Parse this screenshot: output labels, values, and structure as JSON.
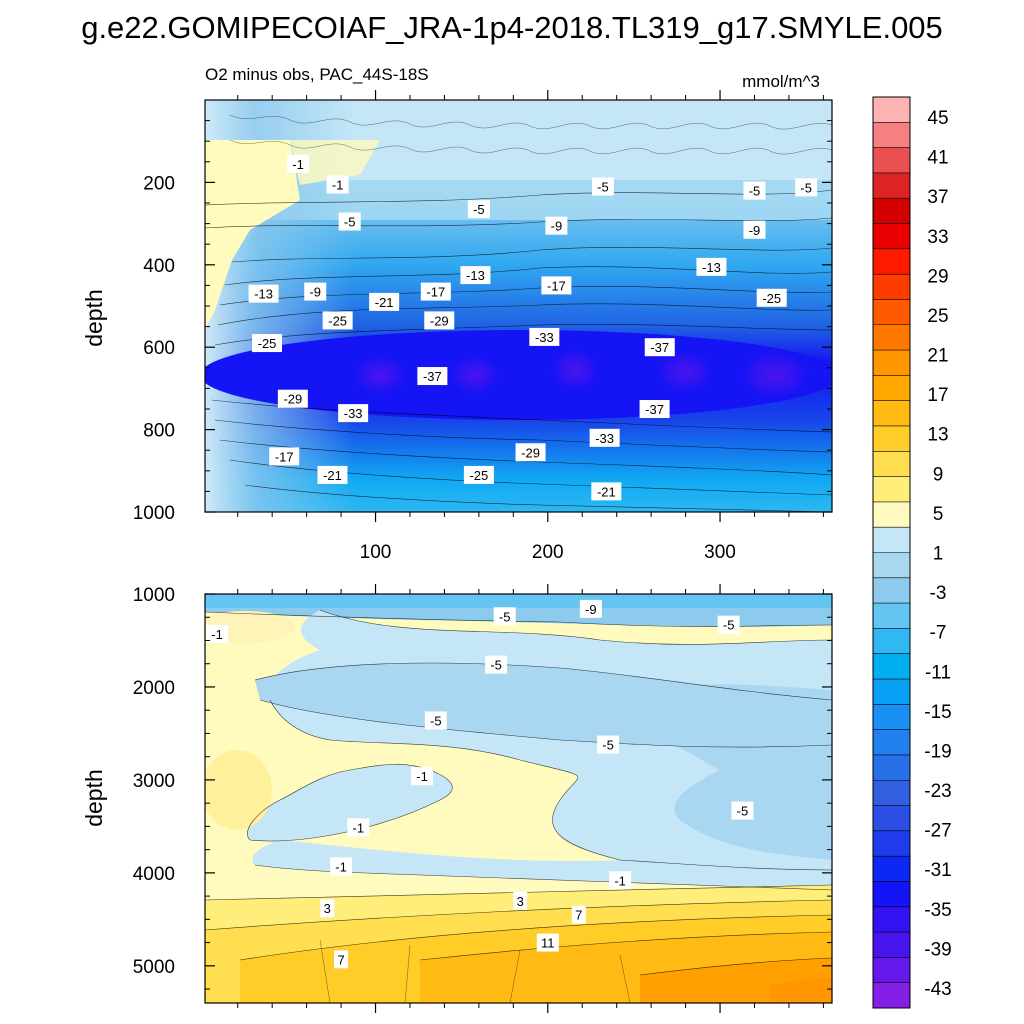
{
  "figure": {
    "title": "g.e22.GOMIPECOIAF_JRA-1p4-2018.TL319_g17.SMYLE.005"
  },
  "chart_data": [
    {
      "type": "contour",
      "panel": "upper",
      "left_title": "O2 minus obs, PAC_44S-18S",
      "right_title": "mmol/m^3",
      "ylabel": "depth",
      "xlabel": "",
      "xlim": [
        1,
        365
      ],
      "ylim": [
        1000,
        0
      ],
      "x_ticks": [
        100,
        200,
        300
      ],
      "y_ticks": [
        200,
        400,
        600,
        800,
        1000
      ],
      "core_min_value": -43,
      "core_depth": 660,
      "contour_labels": [
        {
          "text": "-1",
          "x": 55,
          "y": 155
        },
        {
          "text": "-1",
          "x": 78,
          "y": 205
        },
        {
          "text": "-5",
          "x": 85,
          "y": 295
        },
        {
          "text": "-5",
          "x": 160,
          "y": 265
        },
        {
          "text": "-5",
          "x": 232,
          "y": 210
        },
        {
          "text": "-5",
          "x": 320,
          "y": 220
        },
        {
          "text": "-5",
          "x": 350,
          "y": 212
        },
        {
          "text": "-9",
          "x": 65,
          "y": 465
        },
        {
          "text": "-9",
          "x": 205,
          "y": 305
        },
        {
          "text": "-9",
          "x": 320,
          "y": 315
        },
        {
          "text": "-13",
          "x": 35,
          "y": 470
        },
        {
          "text": "-13",
          "x": 158,
          "y": 425
        },
        {
          "text": "-13",
          "x": 295,
          "y": 405
        },
        {
          "text": "-17",
          "x": 135,
          "y": 465
        },
        {
          "text": "-17",
          "x": 205,
          "y": 450
        },
        {
          "text": "-21",
          "x": 105,
          "y": 490
        },
        {
          "text": "-25",
          "x": 78,
          "y": 535
        },
        {
          "text": "-25",
          "x": 37,
          "y": 590
        },
        {
          "text": "-25",
          "x": 330,
          "y": 480
        },
        {
          "text": "-29",
          "x": 137,
          "y": 535
        },
        {
          "text": "-29",
          "x": 52,
          "y": 725
        },
        {
          "text": "-29",
          "x": 190,
          "y": 855
        },
        {
          "text": "-33",
          "x": 198,
          "y": 575
        },
        {
          "text": "-33",
          "x": 87,
          "y": 760
        },
        {
          "text": "-33",
          "x": 233,
          "y": 820
        },
        {
          "text": "-37",
          "x": 265,
          "y": 600
        },
        {
          "text": "-37",
          "x": 133,
          "y": 670
        },
        {
          "text": "-37",
          "x": 262,
          "y": 750
        },
        {
          "text": "-17",
          "x": 47,
          "y": 865
        },
        {
          "text": "-21",
          "x": 75,
          "y": 910
        },
        {
          "text": "-21",
          "x": 234,
          "y": 950
        },
        {
          "text": "-25",
          "x": 160,
          "y": 910
        }
      ]
    },
    {
      "type": "contour",
      "panel": "lower",
      "ylabel": "depth",
      "xlabel": "",
      "xlim": [
        1,
        365
      ],
      "ylim": [
        5400,
        1000
      ],
      "x_ticks": [
        100,
        200,
        300
      ],
      "y_ticks": [
        1000,
        2000,
        3000,
        4000,
        5000
      ],
      "contour_labels": [
        {
          "text": "-1",
          "x": 8,
          "y": 1430
        },
        {
          "text": "-5",
          "x": 175,
          "y": 1240
        },
        {
          "text": "-9",
          "x": 225,
          "y": 1160
        },
        {
          "text": "-5",
          "x": 305,
          "y": 1330
        },
        {
          "text": "-5",
          "x": 170,
          "y": 1760
        },
        {
          "text": "-5",
          "x": 135,
          "y": 2360
        },
        {
          "text": "-5",
          "x": 235,
          "y": 2620
        },
        {
          "text": "-1",
          "x": 127,
          "y": 2960
        },
        {
          "text": "-5",
          "x": 313,
          "y": 3330
        },
        {
          "text": "-1",
          "x": 90,
          "y": 3510
        },
        {
          "text": "-1",
          "x": 80,
          "y": 3930
        },
        {
          "text": "-1",
          "x": 242,
          "y": 4080
        },
        {
          "text": "3",
          "x": 72,
          "y": 4380
        },
        {
          "text": "3",
          "x": 184,
          "y": 4300
        },
        {
          "text": "7",
          "x": 218,
          "y": 4450
        },
        {
          "text": "11",
          "x": 200,
          "y": 4750
        },
        {
          "text": "7",
          "x": 80,
          "y": 4930
        }
      ]
    }
  ],
  "colorbar": {
    "labels": [
      "45",
      "41",
      "37",
      "33",
      "29",
      "25",
      "21",
      "17",
      "13",
      "9",
      "5",
      "1",
      "-3",
      "-7",
      "-11",
      "-15",
      "-19",
      "-23",
      "-27",
      "-31",
      "-35",
      "-39",
      "-43"
    ],
    "colors": [
      "#fcb4b4",
      "#f68080",
      "#ea5050",
      "#dc2424",
      "#d20000",
      "#ea0000",
      "#ff1a00",
      "#ff3c00",
      "#ff5a00",
      "#ff7800",
      "#ff9600",
      "#ffa800",
      "#ffba14",
      "#ffcc28",
      "#ffde50",
      "#ffee7a",
      "#fffabe",
      "#c4e6f6",
      "#a8d8f0",
      "#8ccbee",
      "#64c4f2",
      "#30b8f4",
      "#00b0f0",
      "#08a0f4",
      "#1890f4",
      "#2080ee",
      "#2870e8",
      "#3060e0",
      "#2c4ee4",
      "#1e3cec",
      "#0c28f4",
      "#1414f6",
      "#3212f0",
      "#4814ee",
      "#6418ea",
      "#8420e6"
    ]
  }
}
